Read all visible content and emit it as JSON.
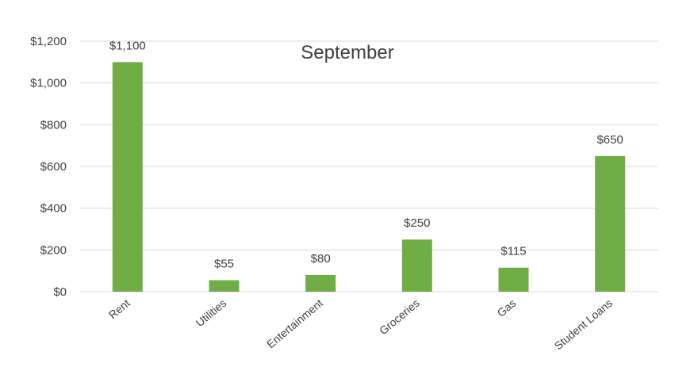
{
  "chart_data": {
    "type": "bar",
    "title": "September",
    "categories": [
      "Rent",
      "Utilities",
      "Entertainment",
      "Groceries",
      "Gas",
      "Student Loans"
    ],
    "values": [
      1100,
      55,
      80,
      250,
      115,
      650
    ],
    "data_labels": [
      "$1,100",
      "$55",
      "$80",
      "$250",
      "$115",
      "$650"
    ],
    "y_ticks": [
      0,
      200,
      400,
      600,
      800,
      1000,
      1200
    ],
    "y_tick_labels": [
      "$0",
      "$200",
      "$400",
      "$600",
      "$800",
      "$1,000",
      "$1,200"
    ],
    "ylim": [
      0,
      1200
    ],
    "grid": true,
    "legend": "none",
    "bar_color": "#70ad47",
    "grid_color": "#d9d9d9",
    "text_color": "#404040"
  }
}
